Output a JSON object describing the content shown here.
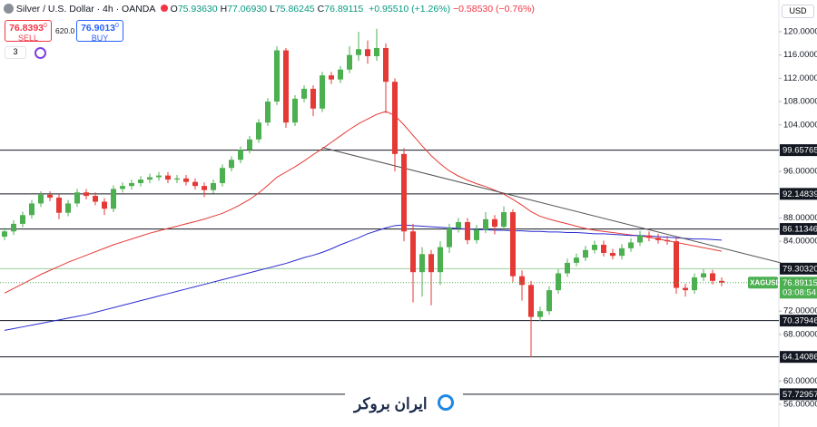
{
  "header": {
    "symbol": "Silver / U.S. Dollar · 4h · OANDA",
    "ohlc": [
      [
        "O",
        "75.93630"
      ],
      [
        "H",
        "77.06930"
      ],
      [
        "L",
        "75.86245"
      ],
      [
        "C",
        "76.89115"
      ]
    ],
    "change_up": "+0.95510 (+1.26%)",
    "change_down": "−0.58530 (−0.76%)",
    "sell": {
      "price": "76.8393",
      "sup": "0",
      "label": "SELL"
    },
    "spread": "620.0",
    "buy": {
      "price": "76.9013",
      "sup": "0",
      "label": "BUY"
    },
    "indicators_count": "3",
    "currency": "USD"
  },
  "chart_data": {
    "type": "candlestick",
    "up_color": "#4caf50",
    "down_color": "#e53935",
    "open": [
      84.8,
      85.7,
      87.0,
      88.5,
      90.5,
      92.0,
      91.5,
      88.9,
      90.5,
      92.4,
      91.8,
      90.8,
      89.6,
      93.0,
      93.5,
      94.0,
      94.6,
      95.0,
      95.3,
      94.6,
      94.8,
      94.2,
      93.5,
      92.8,
      94.0,
      96.6,
      98.0,
      99.7,
      101.5,
      104.4,
      108.0,
      116.8,
      104.4,
      108.5,
      110.2,
      106.8,
      112.5,
      111.8,
      113.5,
      116.0,
      117.0,
      115.8,
      117.2,
      111.4,
      99.0,
      85.7,
      78.7,
      81.8,
      78.7,
      83.0,
      86.3,
      87.3,
      84.2,
      86.0,
      87.8,
      86.5,
      89.0,
      78.0,
      76.5,
      71.0,
      72.0,
      75.6,
      78.5,
      80.3,
      81.2,
      82.5,
      83.4,
      82.0,
      81.5,
      82.8,
      83.8,
      85.0,
      84.6,
      84.2,
      84.0,
      76.0,
      75.6,
      77.8,
      78.5,
      77.2
    ],
    "high": [
      86.3,
      87.6,
      89.1,
      91.1,
      92.6,
      92.6,
      92.1,
      91.1,
      93.0,
      93.0,
      92.4,
      91.4,
      93.6,
      94.1,
      94.6,
      95.2,
      95.6,
      95.9,
      95.9,
      95.4,
      95.4,
      94.8,
      94.1,
      94.6,
      97.2,
      98.6,
      100.3,
      102.1,
      105.0,
      108.6,
      117.5,
      117.2,
      109.1,
      110.8,
      110.8,
      113.1,
      113.1,
      114.1,
      117.5,
      120.0,
      118.5,
      120.5,
      118.0,
      112.0,
      100.0,
      87.0,
      83.0,
      82.5,
      84.0,
      87.0,
      88.0,
      88.0,
      86.8,
      89.0,
      88.5,
      90.0,
      89.5,
      79.0,
      77.2,
      72.8,
      76.3,
      79.2,
      81.0,
      81.9,
      83.2,
      84.1,
      84.1,
      82.7,
      83.5,
      84.5,
      85.8,
      85.7,
      85.3,
      84.9,
      84.6,
      76.7,
      78.5,
      79.2,
      79.1,
      77.8
    ],
    "low": [
      84.2,
      85.1,
      86.4,
      87.9,
      89.9,
      90.9,
      87.8,
      88.3,
      89.9,
      91.2,
      90.2,
      88.5,
      89.0,
      92.4,
      92.9,
      93.4,
      94.0,
      94.4,
      94.0,
      94.0,
      93.6,
      92.9,
      91.6,
      92.2,
      93.4,
      96.0,
      97.4,
      99.1,
      100.9,
      103.8,
      107.4,
      103.5,
      103.8,
      107.9,
      105.5,
      106.2,
      111.0,
      111.2,
      112.9,
      115.0,
      114.5,
      115.0,
      106.0,
      96.0,
      84.0,
      73.5,
      74.5,
      73.0,
      76.5,
      82.0,
      85.5,
      83.5,
      83.6,
      85.4,
      85.2,
      85.9,
      77.0,
      73.8,
      64.1,
      70.3,
      71.4,
      75.0,
      77.9,
      79.7,
      80.6,
      81.9,
      81.4,
      80.9,
      80.9,
      82.2,
      83.2,
      84.0,
      83.6,
      83.4,
      75.0,
      74.5,
      75.0,
      77.2,
      76.6,
      76.3
    ],
    "close": [
      85.7,
      87.0,
      88.5,
      90.5,
      92.0,
      91.5,
      88.9,
      90.5,
      92.4,
      91.8,
      90.8,
      89.6,
      93.0,
      93.5,
      94.0,
      94.6,
      95.0,
      95.3,
      94.6,
      94.8,
      94.2,
      93.5,
      92.8,
      94.0,
      96.6,
      98.0,
      99.7,
      101.5,
      104.4,
      108.0,
      116.8,
      104.4,
      108.5,
      110.2,
      106.8,
      112.5,
      111.8,
      113.5,
      116.0,
      117.0,
      115.8,
      117.2,
      111.4,
      99.0,
      85.7,
      78.7,
      81.8,
      78.7,
      83.0,
      86.3,
      87.3,
      84.2,
      86.0,
      87.8,
      86.5,
      89.0,
      78.0,
      76.5,
      71.0,
      72.0,
      75.6,
      78.5,
      80.3,
      81.2,
      82.5,
      83.4,
      82.0,
      81.5,
      82.8,
      83.8,
      85.0,
      84.6,
      84.2,
      84.0,
      76.0,
      75.6,
      77.8,
      78.5,
      77.2,
      76.9
    ],
    "overlays": [
      {
        "color": "#e53935",
        "values": [
          75.1,
          75.9,
          76.7,
          77.5,
          78.3,
          79.0,
          79.7,
          80.4,
          81.0,
          81.6,
          82.2,
          82.8,
          83.4,
          83.9,
          84.4,
          84.9,
          85.4,
          85.8,
          86.2,
          86.6,
          87.0,
          87.4,
          87.8,
          88.3,
          88.8,
          89.5,
          90.3,
          91.2,
          92.3,
          93.6,
          95.0,
          95.9,
          96.8,
          97.8,
          98.9,
          99.9,
          101.0,
          102.1,
          103.2,
          104.2,
          105.0,
          105.8,
          106.3,
          105.6,
          104.0,
          102.2,
          100.4,
          98.7,
          97.3,
          96.1,
          95.2,
          94.5,
          93.9,
          93.4,
          92.8,
          92.1,
          91.2,
          90.2,
          89.1,
          88.3,
          87.8,
          87.4,
          87.0,
          86.6,
          86.2,
          85.9,
          85.7,
          85.5,
          85.3,
          85.1,
          84.9,
          84.7,
          84.4,
          84.1,
          83.8,
          83.5,
          83.2,
          82.9,
          82.6,
          82.3
        ]
      },
      {
        "color": "#2b2bd0",
        "values": [
          68.7,
          69.0,
          69.3,
          69.6,
          69.9,
          70.2,
          70.5,
          70.8,
          71.1,
          71.4,
          71.8,
          72.2,
          72.6,
          73.0,
          73.4,
          73.8,
          74.2,
          74.6,
          75.0,
          75.4,
          75.8,
          76.2,
          76.6,
          77.0,
          77.4,
          77.8,
          78.2,
          78.6,
          79.0,
          79.4,
          79.8,
          80.2,
          80.7,
          81.2,
          81.6,
          82.1,
          82.7,
          83.4,
          84.0,
          84.6,
          85.3,
          85.8,
          86.3,
          86.7,
          86.8,
          86.7,
          86.6,
          86.5,
          86.4,
          86.3,
          86.2,
          86.1,
          86.0,
          86.0,
          85.9,
          85.9,
          85.8,
          85.8,
          85.7,
          85.7,
          85.6,
          85.6,
          85.5,
          85.5,
          85.4,
          85.3,
          85.3,
          85.2,
          85.1,
          85.0,
          85.0,
          84.9,
          84.8,
          84.7,
          84.6,
          84.5,
          84.4,
          84.4,
          84.3,
          84.2
        ]
      }
    ],
    "trendline": {
      "x": [
        35,
        85.5
      ],
      "y": [
        100.1,
        80.3
      ],
      "color": "#555555"
    },
    "ylim": [
      52.1,
      125.45
    ],
    "yticks": [
      {
        "value": 120,
        "label": "120.00000"
      },
      {
        "value": 116,
        "label": "116.00000"
      },
      {
        "value": 112,
        "label": "112.00000"
      },
      {
        "value": 108,
        "label": "108.00000"
      },
      {
        "value": 104,
        "label": "104.00000"
      },
      {
        "value": 96,
        "label": "96.00000"
      },
      {
        "value": 88,
        "label": "88.00000"
      },
      {
        "value": 84,
        "label": "84.00000"
      },
      {
        "value": 72,
        "label": "72.00000"
      },
      {
        "value": 68,
        "label": "68.00000"
      },
      {
        "value": 60,
        "label": "60.00000"
      },
      {
        "value": 56,
        "label": "56.00000"
      }
    ],
    "levels": [
      {
        "value": 99.65765,
        "color": "#131722"
      },
      {
        "value": 92.14839,
        "color": "#131722"
      },
      {
        "value": 86.11346,
        "color": "#131722"
      },
      {
        "value": 79.3032,
        "label": "79.30320",
        "color": "#9ccc9c"
      },
      {
        "value": 70.37946,
        "color": "#131722"
      },
      {
        "value": 64.14086,
        "color": "#131722"
      },
      {
        "value": 57.72957,
        "color": "#131722"
      }
    ],
    "last_price": {
      "symbol": "XAGUSD",
      "value": 76.89115,
      "countdown": "03:08:54",
      "color": "#4caf50"
    }
  },
  "logo": {
    "text": "ایران بروکر"
  }
}
